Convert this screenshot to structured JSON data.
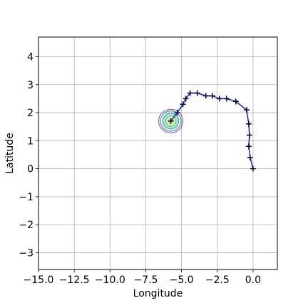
{
  "chart_data": {
    "type": "line",
    "xlabel": "Longitude",
    "ylabel": "Latitude",
    "xlim": [
      -15,
      1.7
    ],
    "ylim": [
      -3.6,
      4.7
    ],
    "grid": true,
    "x_ticks": [
      -15.0,
      -12.5,
      -10.0,
      -7.5,
      -5.0,
      -2.5,
      0.0
    ],
    "x_tick_labels": [
      "−15.0",
      "−12.5",
      "−10.0",
      "−7.5",
      "−5.0",
      "−2.5",
      "0.0"
    ],
    "y_ticks": [
      -3,
      -2,
      -1,
      0,
      1,
      2,
      3,
      4
    ],
    "y_tick_labels": [
      "−3",
      "−2",
      "−1",
      "0",
      "1",
      "2",
      "3",
      "4"
    ],
    "series": [
      {
        "marker": "+",
        "color": "#1f1fbf",
        "marker_color": "#000033",
        "points": [
          [
            0.0,
            0.0
          ],
          [
            -0.2,
            0.4
          ],
          [
            -0.3,
            0.8
          ],
          [
            -0.25,
            1.2
          ],
          [
            -0.3,
            1.6
          ],
          [
            -0.45,
            2.1
          ],
          [
            -1.2,
            2.4
          ],
          [
            -1.85,
            2.5
          ],
          [
            -2.35,
            2.5
          ],
          [
            -2.85,
            2.6
          ],
          [
            -3.3,
            2.6
          ],
          [
            -3.9,
            2.7
          ],
          [
            -4.4,
            2.7
          ],
          [
            -4.7,
            2.5
          ],
          [
            -4.9,
            2.3
          ],
          [
            -5.3,
            2.0
          ],
          [
            -5.75,
            1.7
          ]
        ]
      }
    ],
    "density_contour": {
      "center": [
        -5.75,
        1.7
      ],
      "levels": [
        {
          "rx": 0.85,
          "ry": 0.42,
          "stroke": "#6a6aa8",
          "fill": "none"
        },
        {
          "rx": 0.72,
          "ry": 0.36,
          "stroke": "#5577aa",
          "fill": "none"
        },
        {
          "rx": 0.55,
          "ry": 0.28,
          "stroke": "#33a0a0",
          "fill": "#b8e2dc"
        },
        {
          "rx": 0.36,
          "ry": 0.19,
          "stroke": "#55c09a",
          "fill": "#d6efb0"
        },
        {
          "rx": 0.17,
          "ry": 0.09,
          "stroke": "#d8e86a",
          "fill": "#f2f5a0"
        }
      ]
    }
  }
}
